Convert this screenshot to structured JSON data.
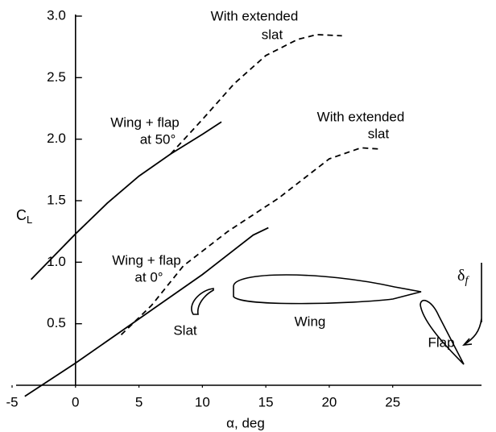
{
  "chart_data": {
    "type": "line",
    "x_label": "α, deg",
    "y_label": "C",
    "y_label_sub": "L",
    "xlim": [
      -5,
      32
    ],
    "ylim": [
      0,
      3
    ],
    "xticks": [
      -5,
      0,
      5,
      10,
      15,
      20,
      25
    ],
    "yticks": [
      0.5,
      {
        "value": 1,
        "label": "1.0"
      },
      1.5,
      {
        "value": 2,
        "label": "2.0"
      },
      2.5,
      {
        "value": 3,
        "label": "3.0"
      }
    ],
    "series": [
      {
        "color": "#000000",
        "dash": false,
        "x": [
          -3.5,
          0,
          2.5,
          5,
          7.5,
          10,
          11.5
        ],
        "values": [
          0.86,
          1.23,
          1.48,
          1.7,
          1.88,
          2.04,
          2.14
        ]
      },
      {
        "color": "#000000",
        "dash": true,
        "x": [
          7.5,
          10,
          12.5,
          15,
          17.5,
          19,
          21
        ],
        "values": [
          1.88,
          2.16,
          2.45,
          2.68,
          2.81,
          2.85,
          2.84
        ]
      },
      {
        "color": "#000000",
        "dash": false,
        "x": [
          -4,
          0,
          5,
          10,
          12.5,
          14,
          15.2
        ],
        "values": [
          -0.09,
          0.18,
          0.54,
          0.9,
          1.1,
          1.22,
          1.28
        ]
      },
      {
        "color": "#000000",
        "dash": true,
        "x": [
          3.6,
          6,
          8.5,
          12,
          16,
          20,
          22.5,
          24
        ],
        "values": [
          0.41,
          0.65,
          0.97,
          1.25,
          1.52,
          1.84,
          1.93,
          1.92
        ]
      }
    ],
    "annotations": [
      "With extended",
      "slat",
      "With extended",
      "slat",
      "Wing + flap",
      "at 50°",
      "Wing + flap",
      "at 0°",
      "Slat",
      "Wing",
      "Flap"
    ],
    "flap_angle": "δ",
    "flap_angle_sub": "f"
  }
}
